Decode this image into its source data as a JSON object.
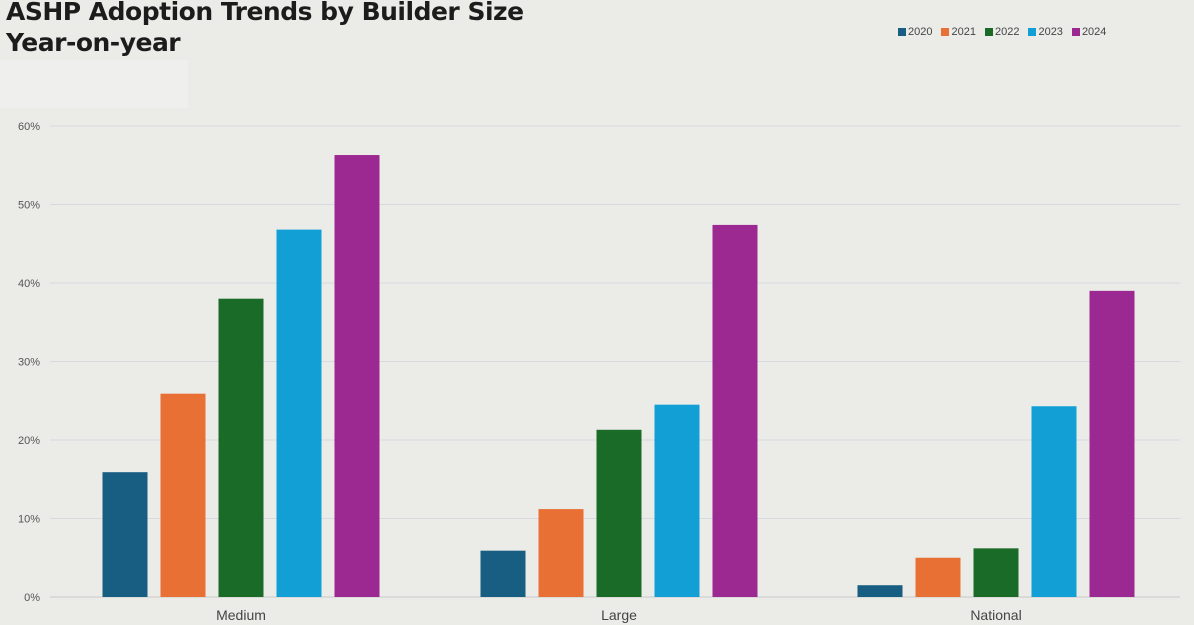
{
  "chart_data": {
    "type": "bar",
    "title": "ASHP Adoption Trends by Builder Size",
    "subtitle": "Year-on-year",
    "xlabel": "",
    "ylabel": "",
    "ylim": [
      0,
      60
    ],
    "yticks": [
      "0%",
      "10%",
      "20%",
      "30%",
      "40%",
      "50%",
      "60%"
    ],
    "ytick_values": [
      0,
      10,
      20,
      30,
      40,
      50,
      60
    ],
    "grid": true,
    "legend_position": "top-right",
    "categories": [
      "Medium",
      "Large",
      "National"
    ],
    "series": [
      {
        "name": "2020",
        "color": "#175e82",
        "values": [
          15.9,
          5.9,
          1.5
        ]
      },
      {
        "name": "2021",
        "color": "#e87035",
        "values": [
          25.9,
          11.2,
          5.0
        ]
      },
      {
        "name": "2022",
        "color": "#1b6b28",
        "values": [
          38.0,
          21.3,
          6.2
        ]
      },
      {
        "name": "2023",
        "color": "#119fd6",
        "values": [
          46.8,
          24.5,
          24.3
        ]
      },
      {
        "name": "2024",
        "color": "#9c2891",
        "values": [
          56.3,
          47.4,
          39.0
        ]
      }
    ]
  }
}
